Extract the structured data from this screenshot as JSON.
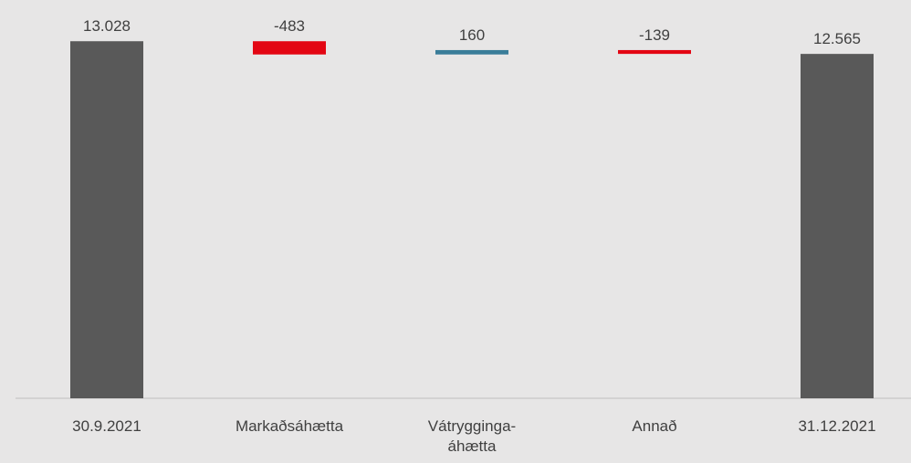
{
  "chart_data": {
    "type": "waterfall",
    "categories": [
      "30.9.2021",
      "Markaðsáhætta",
      "Vátrygginga-áhætta",
      "Annað",
      "31.12.2021"
    ],
    "values": [
      13028,
      -483,
      160,
      -139,
      12565
    ],
    "value_labels": [
      "13.028",
      "-483",
      "160",
      "-139",
      "12.565"
    ],
    "measures": [
      "total",
      "relative",
      "relative",
      "relative",
      "total"
    ],
    "colors": {
      "total": "#595959",
      "decrease": "#e30613",
      "increase": "#3a7d99"
    },
    "ylim": [
      0,
      14000
    ]
  }
}
